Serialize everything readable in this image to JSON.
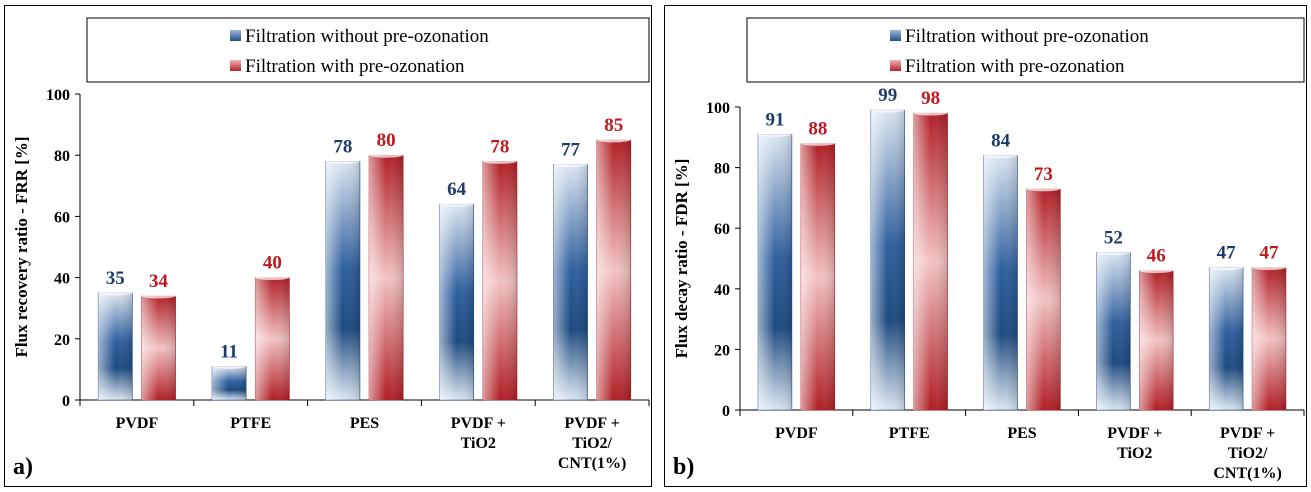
{
  "colors": {
    "series1_label": "#1f3a6b",
    "series2_label": "#c0181e",
    "series1_dark": "#1f4f8a",
    "series2_dark": "#b5222a"
  },
  "chart_data": [
    {
      "type": "bar",
      "panel_label": "a)",
      "ylabel": "Flux recovery ratio - FRR [%]",
      "ylim": [
        0,
        100
      ],
      "yticks": [
        0,
        20,
        40,
        60,
        80,
        100
      ],
      "grid": false,
      "legend_position": "top",
      "categories": [
        [
          "PVDF"
        ],
        [
          "PTFE"
        ],
        [
          "PES"
        ],
        [
          "PVDF +",
          "TiO2"
        ],
        [
          "PVDF +",
          "TiO2/",
          "CNT(1%)"
        ]
      ],
      "series": [
        {
          "name": "Filtration without pre-ozonation",
          "values": [
            35,
            11,
            78,
            64,
            77
          ]
        },
        {
          "name": "Filtration with pre-ozonation",
          "values": [
            34,
            40,
            80,
            78,
            85
          ]
        }
      ]
    },
    {
      "type": "bar",
      "panel_label": "b)",
      "ylabel": "Flux decay ratio - FDR [%]",
      "ylim": [
        0,
        100
      ],
      "yticks": [
        0,
        20,
        40,
        60,
        80,
        100
      ],
      "grid": false,
      "legend_position": "top",
      "categories": [
        [
          "PVDF"
        ],
        [
          "PTFE"
        ],
        [
          "PES"
        ],
        [
          "PVDF +",
          "TiO2"
        ],
        [
          "PVDF +",
          "TiO2/",
          "CNT(1%)"
        ]
      ],
      "series": [
        {
          "name": "Filtration without pre-ozonation",
          "values": [
            91,
            99,
            84,
            52,
            47
          ]
        },
        {
          "name": "Filtration with pre-ozonation",
          "values": [
            88,
            98,
            73,
            46,
            47
          ]
        }
      ]
    }
  ]
}
